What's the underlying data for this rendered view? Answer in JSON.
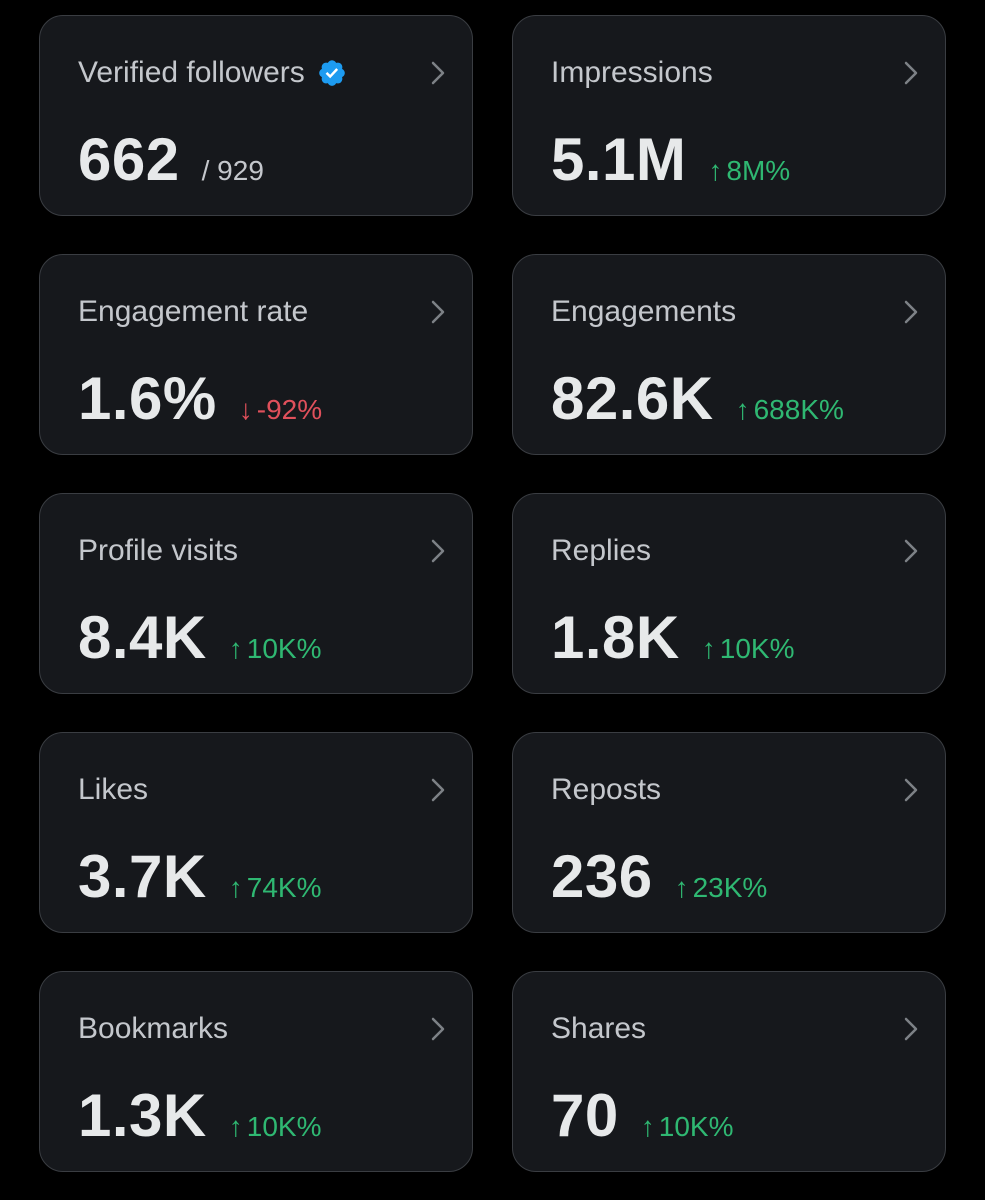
{
  "colors": {
    "background": "#000000",
    "card_bg": "#16181c",
    "card_border": "#3a3d42",
    "up": "#2fb872",
    "down": "#e0505b",
    "verified": "#1d9bf0"
  },
  "cards": [
    {
      "title": "Verified followers",
      "value": "662",
      "sub": "/ 929"
    },
    {
      "title": "Impressions",
      "value": "5.1M",
      "arrow": "↑",
      "change": "8M%"
    },
    {
      "title": "Engagement rate",
      "value": "1.6%",
      "arrow": "↓",
      "change": "-92%"
    },
    {
      "title": "Engagements",
      "value": "82.6K",
      "arrow": "↑",
      "change": "688K%"
    },
    {
      "title": "Profile visits",
      "value": "8.4K",
      "arrow": "↑",
      "change": "10K%"
    },
    {
      "title": "Replies",
      "value": "1.8K",
      "arrow": "↑",
      "change": "10K%"
    },
    {
      "title": "Likes",
      "value": "3.7K",
      "arrow": "↑",
      "change": "74K%"
    },
    {
      "title": "Reposts",
      "value": "236",
      "arrow": "↑",
      "change": "23K%"
    },
    {
      "title": "Bookmarks",
      "value": "1.3K",
      "arrow": "↑",
      "change": "10K%"
    },
    {
      "title": "Shares",
      "value": "70",
      "arrow": "↑",
      "change": "10K%"
    }
  ]
}
